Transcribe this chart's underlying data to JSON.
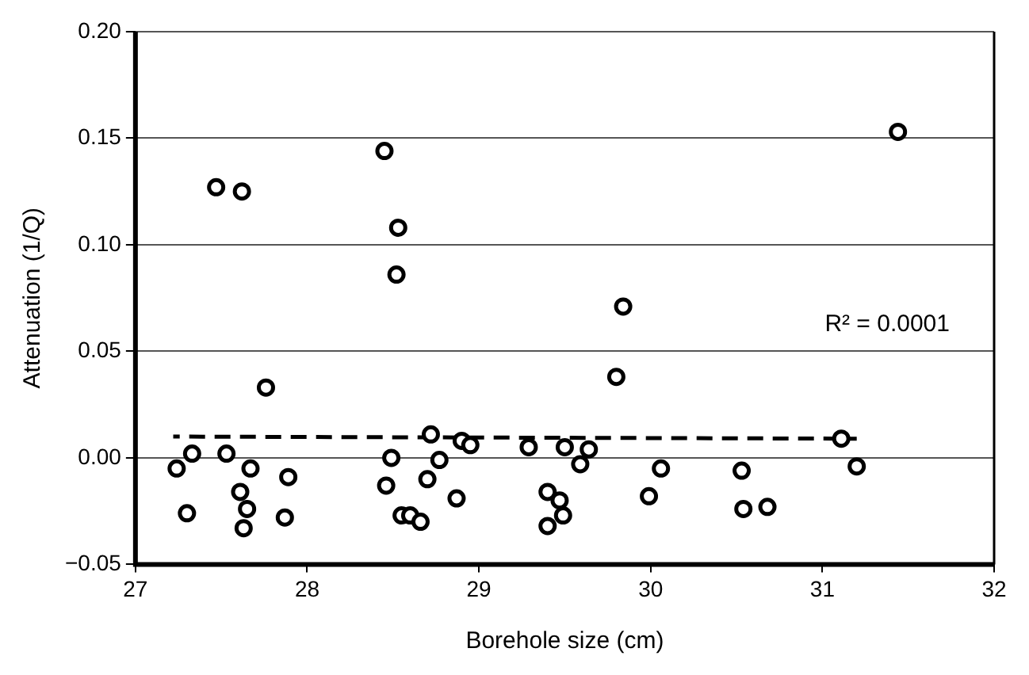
{
  "chart_data": {
    "type": "scatter",
    "xlabel": "Borehole size (cm)",
    "ylabel": "Attenuation (1/Q)",
    "xlim": [
      27,
      32
    ],
    "xticks": [
      27,
      28,
      29,
      30,
      31,
      32
    ],
    "ylim": [
      -0.05,
      0.2
    ],
    "yticks": [
      {
        "value": -0.05,
        "label": "−0.05"
      },
      {
        "value": 0,
        "label": "0.00"
      },
      {
        "value": 0.05,
        "label": "0.05"
      },
      {
        "value": 0.1,
        "label": "0.10"
      },
      {
        "value": 0.15,
        "label": "0.15"
      },
      {
        "value": 0.2,
        "label": "0.20"
      }
    ],
    "grid": "y",
    "marker": "circle",
    "legend": false,
    "annotations": [
      "R² = 0.0001"
    ],
    "series": [
      {
        "type": "scatter",
        "color": "#000000",
        "x": [
          27.24,
          27.33,
          27.3,
          27.53,
          27.67,
          27.61,
          27.65,
          27.63,
          27.89,
          27.87,
          27.76,
          28.49,
          28.46,
          28.55,
          28.6,
          28.66,
          28.72,
          28.77,
          28.7,
          28.87,
          28.9,
          28.95,
          29.29,
          29.4,
          29.4,
          29.47,
          29.49,
          29.5,
          29.64,
          29.59,
          29.8,
          30.06,
          29.99,
          30.53,
          30.54,
          30.68,
          31.11,
          31.2,
          27.47,
          27.62,
          28.45,
          28.53,
          28.52,
          31.44,
          29.84
        ],
        "values": [
          -0.005,
          0.002,
          -0.026,
          0.002,
          -0.005,
          -0.016,
          -0.024,
          -0.033,
          -0.009,
          -0.028,
          0.033,
          0.0,
          -0.013,
          -0.027,
          -0.027,
          -0.03,
          0.011,
          -0.001,
          -0.01,
          -0.019,
          0.008,
          0.006,
          0.005,
          -0.016,
          -0.032,
          -0.02,
          -0.027,
          0.005,
          0.004,
          -0.003,
          0.038,
          -0.005,
          -0.018,
          -0.006,
          -0.024,
          -0.023,
          0.009,
          -0.004,
          0.127,
          0.125,
          0.144,
          0.108,
          0.086,
          0.153,
          0.071
        ]
      },
      {
        "type": "line",
        "color": "#000000",
        "line_style": "dashed",
        "marker": "none",
        "x": [
          27.22,
          31.2
        ],
        "values": [
          0.01,
          0.009
        ]
      }
    ]
  }
}
